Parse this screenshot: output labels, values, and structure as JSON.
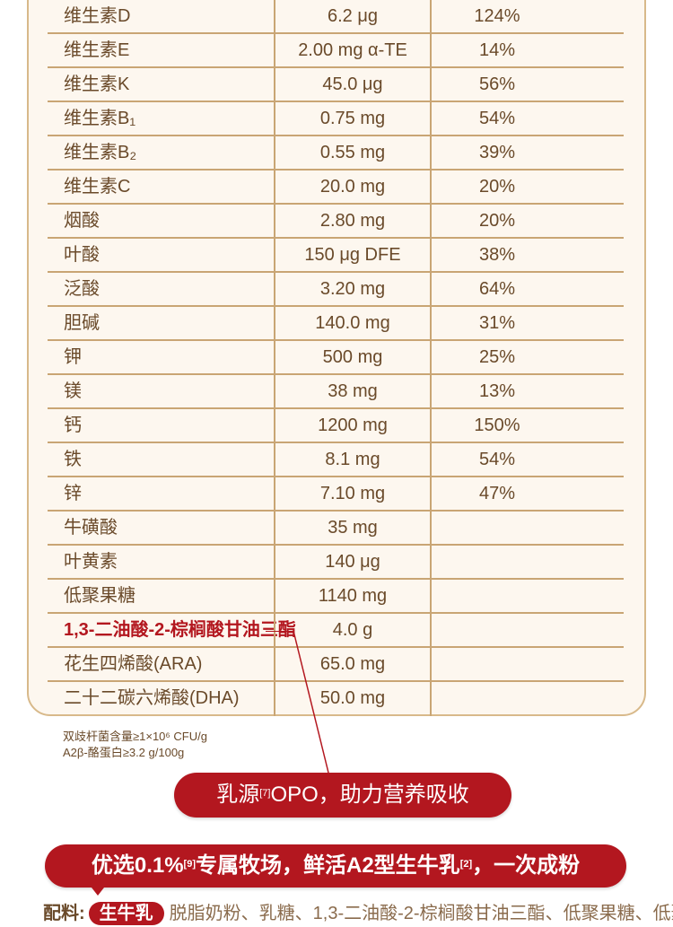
{
  "table": {
    "rows": [
      {
        "name": "维生素D",
        "value": "6.2 μg",
        "percent": "124%"
      },
      {
        "name": "维生素E",
        "value": "2.00 mg α-TE",
        "percent": "14%"
      },
      {
        "name": "维生素K",
        "value": "45.0 μg",
        "percent": "56%"
      },
      {
        "name": "维生素B₁",
        "value": "0.75 mg",
        "percent": "54%"
      },
      {
        "name": "维生素B₂",
        "value": "0.55 mg",
        "percent": "39%"
      },
      {
        "name": "维生素C",
        "value": "20.0 mg",
        "percent": "20%"
      },
      {
        "name": "烟酸",
        "value": "2.80 mg",
        "percent": "20%"
      },
      {
        "name": "叶酸",
        "value": "150 μg DFE",
        "percent": "38%"
      },
      {
        "name": "泛酸",
        "value": "3.20 mg",
        "percent": "64%"
      },
      {
        "name": "胆碱",
        "value": "140.0 mg",
        "percent": "31%"
      },
      {
        "name": "钾",
        "value": "500 mg",
        "percent": "25%"
      },
      {
        "name": "镁",
        "value": "38 mg",
        "percent": "13%"
      },
      {
        "name": "钙",
        "value": "1200 mg",
        "percent": "150%"
      },
      {
        "name": "铁",
        "value": "8.1 mg",
        "percent": "54%"
      },
      {
        "name": "锌",
        "value": "7.10 mg",
        "percent": "47%"
      },
      {
        "name": "牛磺酸",
        "value": "35 mg",
        "percent": ""
      },
      {
        "name": "叶黄素",
        "value": "140 μg",
        "percent": ""
      },
      {
        "name": "低聚果糖",
        "value": "1140 mg",
        "percent": ""
      },
      {
        "name": "1,3-二油酸-2-棕榈酸甘油三酯",
        "value": "4.0 g",
        "percent": "",
        "highlight": true
      },
      {
        "name": "花生四烯酸(ARA)",
        "value": "65.0 mg",
        "percent": ""
      },
      {
        "name": "二十二碳六烯酸(DHA)",
        "value": "50.0 mg",
        "percent": ""
      }
    ]
  },
  "notes": {
    "line1": "双歧杆菌含量≥1×10⁶ CFU/g",
    "line2": "A2β-酪蛋白≥3.2 g/100g"
  },
  "banner1": {
    "prefix": "乳源",
    "sup": "[7]",
    "suffix": "OPO，助力营养吸收"
  },
  "banner2": {
    "prefix": "优选0.1%",
    "sup1": "[9]",
    "middle": "专属牧场，鲜活A2型生牛乳",
    "sup2": "[2]",
    "suffix": "，一次成粉"
  },
  "ingredients": {
    "label": "配料:",
    "pill": "生牛乳",
    "rest": "脱脂奶粉、乳糖、1,3-二油酸-2-棕榈酸甘油三酯、低聚果糖、低聚半乳"
  },
  "colors": {
    "accent_red": "#b3171f",
    "text_brown": "#6a4a2a",
    "border_gold": "#c9a574",
    "card_bg": "#fdf7ef"
  }
}
